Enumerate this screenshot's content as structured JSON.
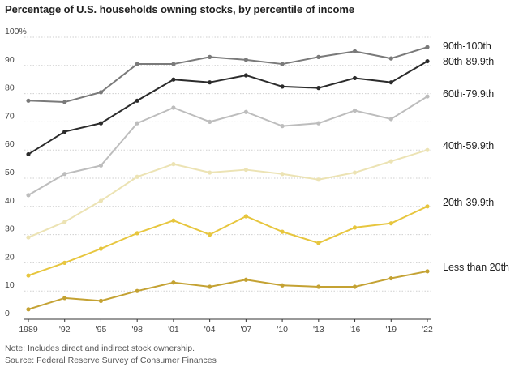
{
  "chart_data": {
    "type": "line",
    "title": "Percentage of U.S. households owning stocks, by percentile of income",
    "xlabel": "",
    "ylabel": "",
    "x": [
      "1989",
      "'92",
      "'95",
      "'98",
      "'01",
      "'04",
      "'07",
      "'10",
      "'13",
      "'16",
      "'19",
      "'22"
    ],
    "y_ticks": [
      "100%",
      "90",
      "80",
      "70",
      "60",
      "50",
      "40",
      "30",
      "20",
      "10",
      "0"
    ],
    "ylim": [
      0,
      100
    ],
    "grid": true,
    "series": [
      {
        "name": "90th-100th",
        "color": "#7a7a7a",
        "values": [
          77.5,
          77,
          80.5,
          90.5,
          90.5,
          93,
          92,
          90.5,
          93,
          95,
          92.5,
          96.5
        ]
      },
      {
        "name": "80th-89.9th",
        "color": "#2b2b2b",
        "values": [
          58.5,
          66.5,
          69.5,
          77.5,
          85,
          84,
          86.5,
          82.5,
          82,
          85.5,
          84,
          91.5
        ]
      },
      {
        "name": "60th-79.9th",
        "color": "#bdbdbd",
        "values": [
          44,
          51.5,
          54.5,
          69.5,
          75,
          70,
          73.5,
          68.5,
          69.5,
          74,
          71,
          79
        ]
      },
      {
        "name": "40th-59.9th",
        "color": "#ece3b4",
        "values": [
          29,
          34.5,
          42,
          50.5,
          55,
          52,
          53,
          51.5,
          49.5,
          52,
          56,
          60
        ]
      },
      {
        "name": "20th-39.9th",
        "color": "#e7c63e",
        "values": [
          15.5,
          20,
          25,
          30.5,
          35,
          30,
          36.5,
          31,
          27,
          32.5,
          34,
          40
        ]
      },
      {
        "name": "Less than 20th",
        "color": "#c4a233",
        "values": [
          3.5,
          7.5,
          6.5,
          10,
          13,
          11.5,
          14,
          12,
          11.5,
          11.5,
          14.5,
          17
        ]
      }
    ],
    "notes": [
      "Note: Includes direct and indirect stock ownership.",
      "Source: Federal Reserve Survey of Consumer Finances"
    ]
  }
}
